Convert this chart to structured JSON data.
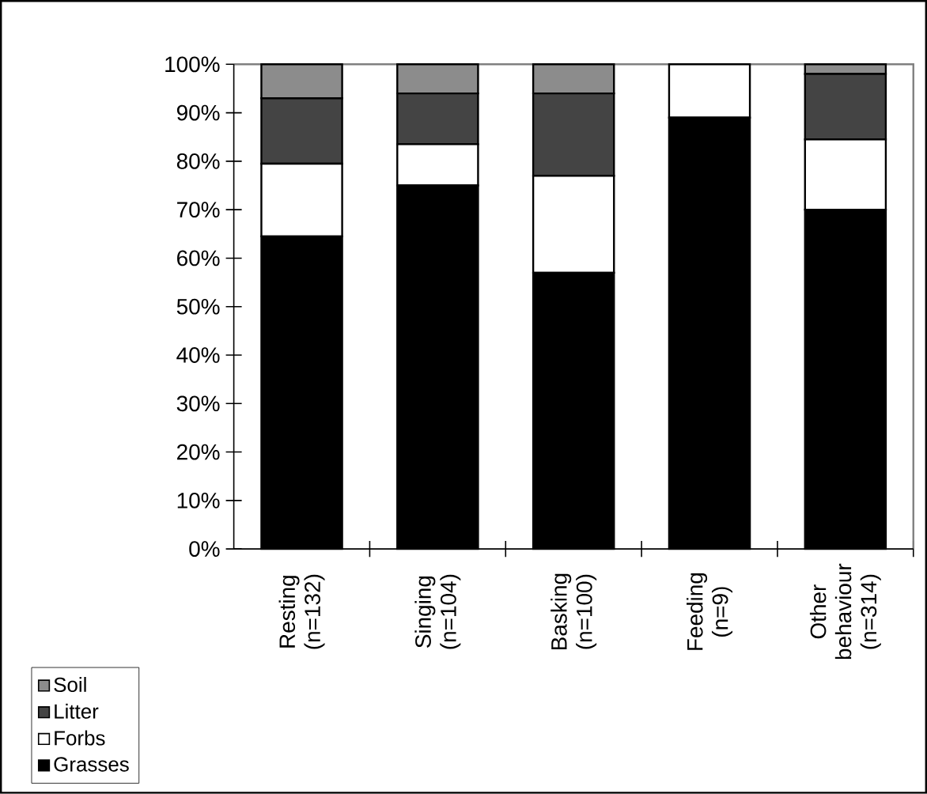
{
  "chart_data": {
    "type": "bar",
    "stacked": true,
    "categories": [
      "Resting (n=132)",
      "Singing (n=104)",
      "Basking (n=100)",
      "Feeding (n=9)",
      "Other behaviour (n=314)"
    ],
    "series": [
      {
        "name": "Grasses",
        "color": "#000000",
        "values": [
          64.5,
          75,
          57,
          89,
          70
        ]
      },
      {
        "name": "Forbs",
        "color": "#ffffff",
        "values": [
          15,
          8.5,
          20,
          11,
          14.5
        ]
      },
      {
        "name": "Litter",
        "color": "#444444",
        "values": [
          13.5,
          10.5,
          17,
          0,
          13.5
        ]
      },
      {
        "name": "Soil",
        "color": "#8c8c8c",
        "values": [
          7,
          6,
          6,
          0,
          2
        ]
      }
    ],
    "ylim": [
      0,
      100
    ],
    "yticks": [
      {
        "value": 0,
        "label": "0%"
      },
      {
        "value": 10,
        "label": "10%"
      },
      {
        "value": 20,
        "label": "20%"
      },
      {
        "value": 30,
        "label": "30%"
      },
      {
        "value": 40,
        "label": "40%"
      },
      {
        "value": 50,
        "label": "50%"
      },
      {
        "value": 60,
        "label": "60%"
      },
      {
        "value": 70,
        "label": "70%"
      },
      {
        "value": 80,
        "label": "80%"
      },
      {
        "value": 90,
        "label": "90%"
      },
      {
        "value": 100,
        "label": "100%"
      }
    ],
    "legend": "bottom left"
  }
}
